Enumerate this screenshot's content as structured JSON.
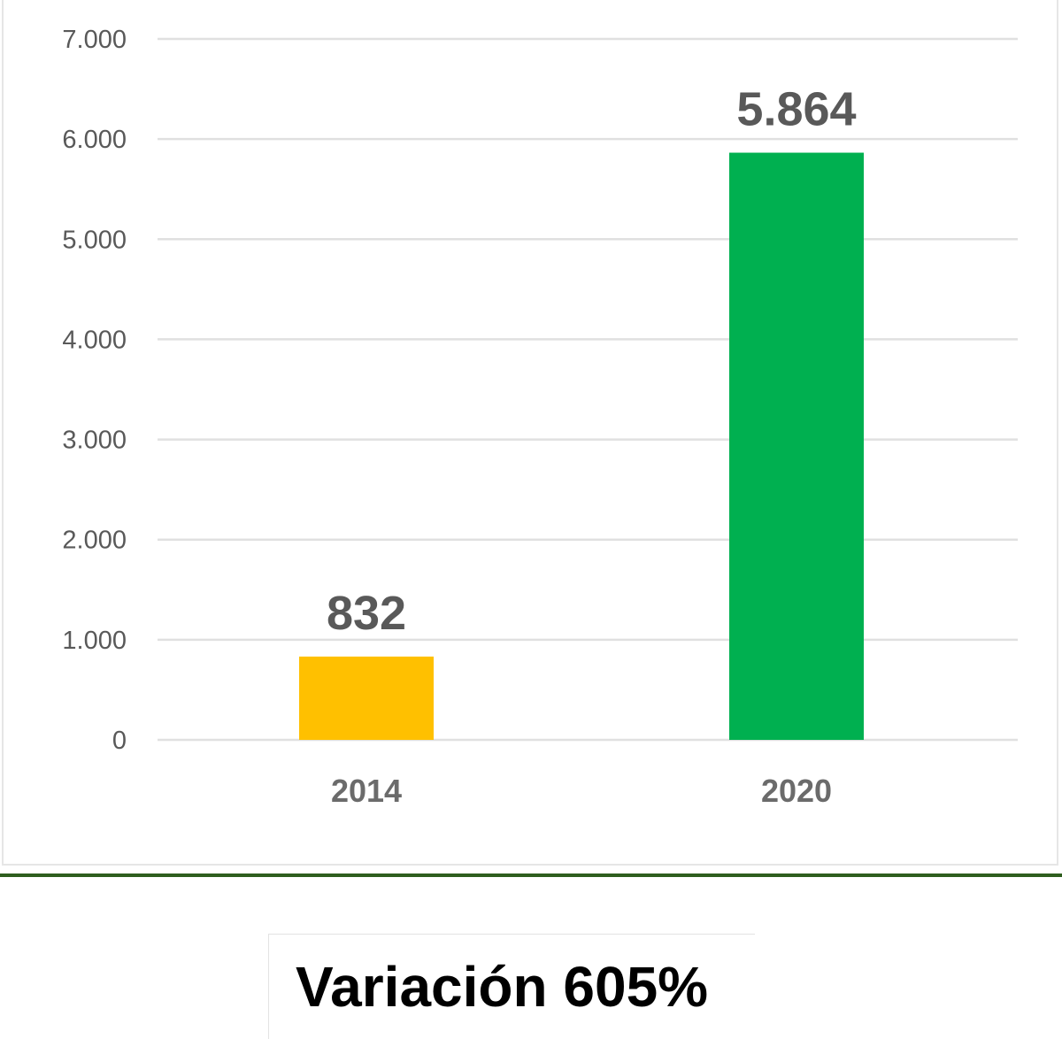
{
  "chart_data": {
    "type": "bar",
    "categories": [
      "2014",
      "2020"
    ],
    "values": [
      832,
      5864
    ],
    "value_labels": [
      "832",
      "5.864"
    ],
    "bar_colors": [
      "#ffc000",
      "#00b050"
    ],
    "y_ticks": [
      0,
      1000,
      2000,
      3000,
      4000,
      5000,
      6000,
      7000
    ],
    "y_tick_labels": [
      "0",
      "1.000",
      "2.000",
      "3.000",
      "4.000",
      "5.000",
      "6.000",
      "7.000"
    ],
    "ylim": [
      0,
      7000
    ],
    "grid": true,
    "gridline_color": "#e0e0e0",
    "title": "",
    "xlabel": "",
    "ylabel": ""
  },
  "footer": {
    "variation_text": "Variación 605%",
    "divider_color": "#2e5e1e"
  }
}
